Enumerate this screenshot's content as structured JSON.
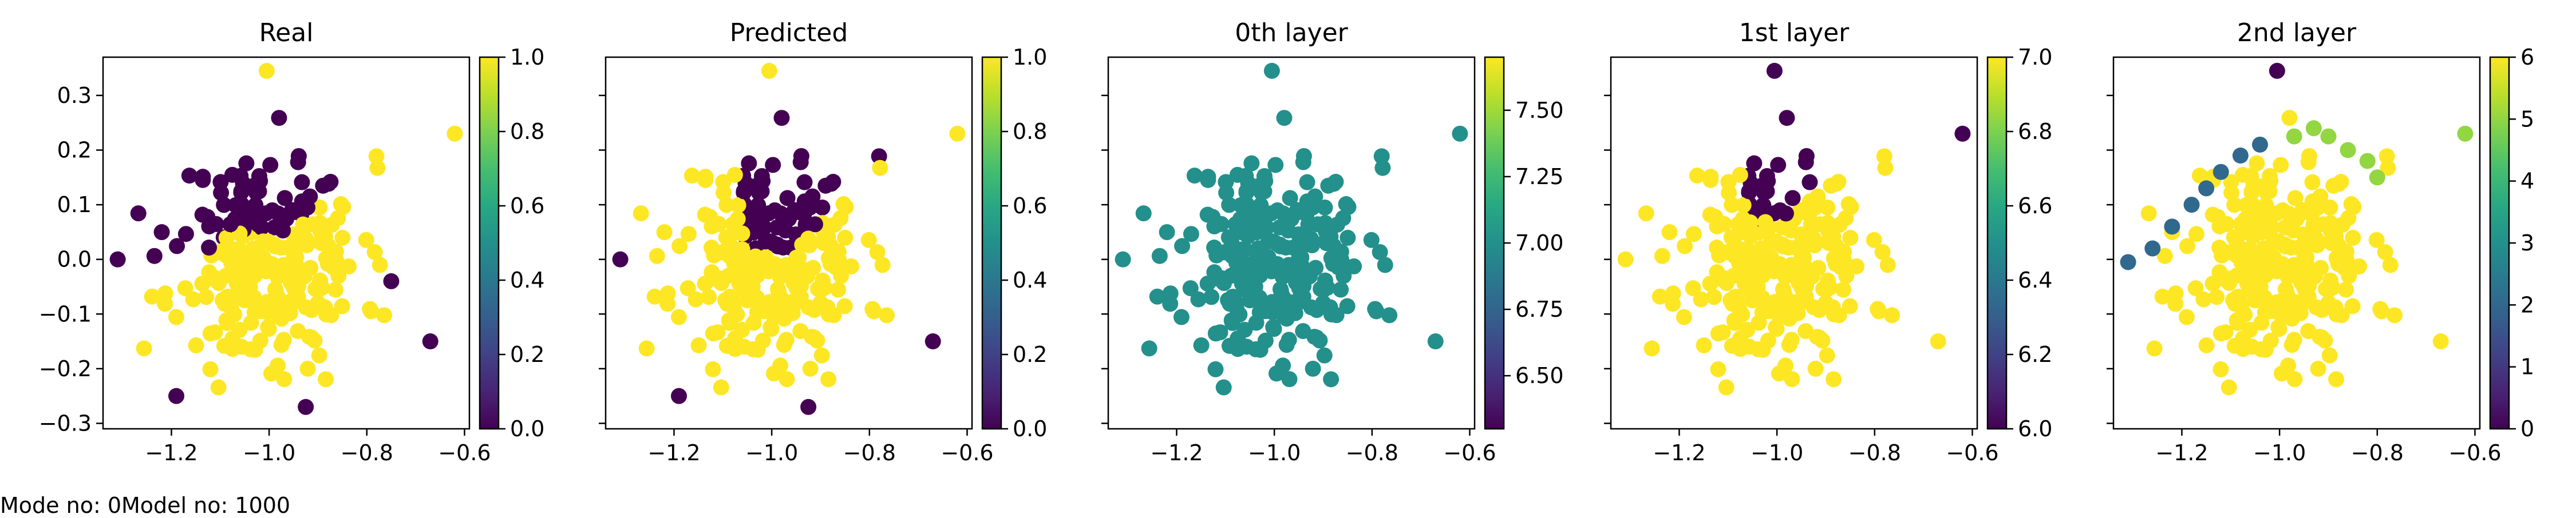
{
  "footer": {
    "text": "Mode no: 0Model no: 1000"
  },
  "chart_data": [
    {
      "type": "scatter",
      "title": "Real",
      "xlabel": "",
      "ylabel": "",
      "xlim": [
        -1.34,
        -0.59
      ],
      "ylim": [
        -0.31,
        0.37
      ],
      "xticks": [
        -1.2,
        -1.0,
        -0.8,
        -0.6
      ],
      "yticks": [
        -0.3,
        -0.2,
        -0.1,
        0.0,
        0.1,
        0.2,
        0.3
      ],
      "show_y_tick_labels": true,
      "colormap": "viridis",
      "color_range": [
        0.0,
        1.0
      ],
      "colorbar_ticks": [
        "0.0",
        "0.2",
        "0.4",
        "0.6",
        "0.8",
        "1.0"
      ],
      "grid": false,
      "legend": "none",
      "generated_points": {
        "seed": 11,
        "n": 260,
        "rule": "real"
      },
      "points": [
        {
          "x": -1.005,
          "y": 0.345,
          "c": 1
        },
        {
          "x": -0.62,
          "y": 0.23,
          "c": 1
        },
        {
          "x": -1.31,
          "y": 0.0,
          "c": 0
        },
        {
          "x": -1.19,
          "y": -0.25,
          "c": 0
        },
        {
          "x": -0.67,
          "y": -0.15,
          "c": 0
        },
        {
          "x": -0.925,
          "y": -0.27,
          "c": 0
        },
        {
          "x": -0.75,
          "y": -0.04,
          "c": 0
        }
      ]
    },
    {
      "type": "scatter",
      "title": "Predicted",
      "xlabel": "",
      "ylabel": "",
      "xlim": [
        -1.34,
        -0.59
      ],
      "ylim": [
        -0.31,
        0.37
      ],
      "xticks": [
        -1.2,
        -1.0,
        -0.8,
        -0.6
      ],
      "yticks": [
        -0.3,
        -0.2,
        -0.1,
        0.0,
        0.1,
        0.2,
        0.3
      ],
      "show_y_tick_labels": false,
      "colormap": "viridis",
      "color_range": [
        0.0,
        1.0
      ],
      "colorbar_ticks": [
        "0.0",
        "0.2",
        "0.4",
        "0.6",
        "0.8",
        "1.0"
      ],
      "grid": false,
      "legend": "none",
      "generated_points": {
        "seed": 11,
        "n": 260,
        "rule": "predicted"
      },
      "points": [
        {
          "x": -1.005,
          "y": 0.345,
          "c": 1
        },
        {
          "x": -0.62,
          "y": 0.23,
          "c": 1
        },
        {
          "x": -1.31,
          "y": 0.0,
          "c": 0
        },
        {
          "x": -1.19,
          "y": -0.25,
          "c": 0
        },
        {
          "x": -0.67,
          "y": -0.15,
          "c": 0
        },
        {
          "x": -0.925,
          "y": -0.27,
          "c": 0
        }
      ]
    },
    {
      "type": "scatter",
      "title": "0th layer",
      "xlabel": "",
      "ylabel": "",
      "xlim": [
        -1.34,
        -0.59
      ],
      "ylim": [
        -0.31,
        0.37
      ],
      "xticks": [
        -1.2,
        -1.0,
        -0.8,
        -0.6
      ],
      "yticks": [
        -0.3,
        -0.2,
        -0.1,
        0.0,
        0.1,
        0.2,
        0.3
      ],
      "show_y_tick_labels": false,
      "colormap": "viridis",
      "color_range": [
        6.3,
        7.7
      ],
      "colorbar_ticks": [
        "6.50",
        "6.75",
        "7.00",
        "7.25",
        "7.50"
      ],
      "grid": false,
      "legend": "none",
      "generated_points": {
        "seed": 11,
        "n": 260,
        "rule": "constant7"
      },
      "points": [
        {
          "x": -1.005,
          "y": 0.345,
          "c": 7
        },
        {
          "x": -0.62,
          "y": 0.23,
          "c": 7
        },
        {
          "x": -1.31,
          "y": 0.0,
          "c": 7
        },
        {
          "x": -0.67,
          "y": -0.15,
          "c": 7
        }
      ]
    },
    {
      "type": "scatter",
      "title": "1st layer",
      "xlabel": "",
      "ylabel": "",
      "xlim": [
        -1.34,
        -0.59
      ],
      "ylim": [
        -0.31,
        0.37
      ],
      "xticks": [
        -1.2,
        -1.0,
        -0.8,
        -0.6
      ],
      "yticks": [
        -0.3,
        -0.2,
        -0.1,
        0.0,
        0.1,
        0.2,
        0.3
      ],
      "show_y_tick_labels": false,
      "colormap": "viridis",
      "color_range": [
        6.0,
        7.0
      ],
      "colorbar_ticks": [
        "6.0",
        "6.2",
        "6.4",
        "6.6",
        "6.8",
        "7.0"
      ],
      "grid": false,
      "legend": "none",
      "generated_points": {
        "seed": 11,
        "n": 260,
        "rule": "layer1"
      },
      "points": [
        {
          "x": -1.005,
          "y": 0.345,
          "c": 6
        },
        {
          "x": -0.62,
          "y": 0.23,
          "c": 6
        },
        {
          "x": -1.31,
          "y": 0.0,
          "c": 7
        },
        {
          "x": -0.67,
          "y": -0.15,
          "c": 7
        }
      ]
    },
    {
      "type": "scatter",
      "title": "2nd layer",
      "xlabel": "",
      "ylabel": "",
      "xlim": [
        -1.34,
        -0.59
      ],
      "ylim": [
        -0.31,
        0.37
      ],
      "xticks": [
        -1.2,
        -1.0,
        -0.8,
        -0.6
      ],
      "yticks": [
        -0.3,
        -0.2,
        -0.1,
        0.0,
        0.1,
        0.2,
        0.3
      ],
      "show_y_tick_labels": false,
      "colormap": "viridis",
      "color_range": [
        0,
        6
      ],
      "colorbar_ticks": [
        "0",
        "1",
        "2",
        "3",
        "4",
        "5",
        "6"
      ],
      "grid": false,
      "legend": "none",
      "generated_points": {
        "seed": 11,
        "n": 260,
        "rule": "layer2"
      },
      "points": [
        {
          "x": -1.005,
          "y": 0.345,
          "c": 0
        },
        {
          "x": -0.62,
          "y": 0.23,
          "c": 5
        },
        {
          "x": -1.31,
          "y": -0.005,
          "c": 2
        },
        {
          "x": -1.26,
          "y": 0.02,
          "c": 2
        },
        {
          "x": -1.22,
          "y": 0.06,
          "c": 2
        },
        {
          "x": -1.18,
          "y": 0.1,
          "c": 2
        },
        {
          "x": -1.15,
          "y": 0.13,
          "c": 2
        },
        {
          "x": -1.12,
          "y": 0.16,
          "c": 2
        },
        {
          "x": -1.08,
          "y": 0.19,
          "c": 2
        },
        {
          "x": -1.04,
          "y": 0.21,
          "c": 2
        },
        {
          "x": -0.97,
          "y": 0.225,
          "c": 5
        },
        {
          "x": -0.93,
          "y": 0.24,
          "c": 5
        },
        {
          "x": -0.9,
          "y": 0.225,
          "c": 5
        },
        {
          "x": -0.86,
          "y": 0.2,
          "c": 5
        },
        {
          "x": -0.82,
          "y": 0.18,
          "c": 5
        },
        {
          "x": -0.8,
          "y": 0.15,
          "c": 5
        },
        {
          "x": -0.67,
          "y": -0.15,
          "c": 6
        }
      ]
    }
  ]
}
